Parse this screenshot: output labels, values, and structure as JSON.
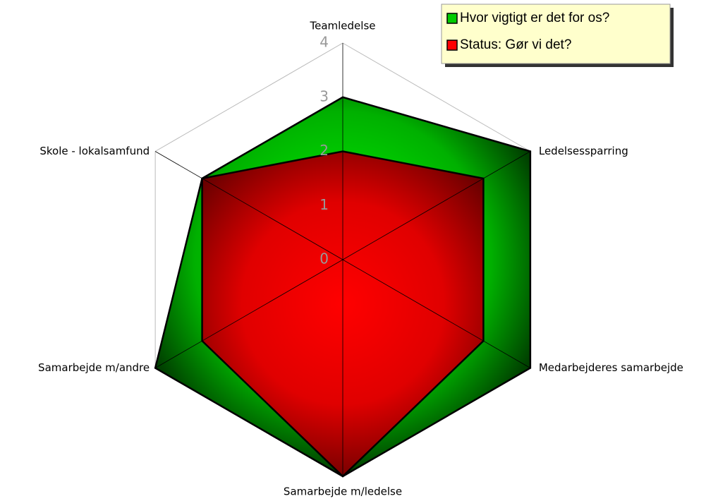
{
  "chart_data": {
    "type": "radar",
    "categories": [
      "Teamledelse",
      "Ledelsessparring",
      "Medarbejderes samarbejde",
      "Samarbejde m/ledelse",
      "Samarbejde m/andre",
      "Skole - lokalsamfund"
    ],
    "series": [
      {
        "name": "Hvor vigtigt er det for os?",
        "color": "#00cc00",
        "values": [
          3,
          4,
          4,
          4,
          4,
          3
        ]
      },
      {
        "name": "Status: Gør vi det?",
        "color": "#ff0000",
        "values": [
          2,
          3,
          3,
          4,
          3,
          3
        ]
      }
    ],
    "ylim": [
      0,
      4
    ],
    "yticks": [
      0,
      1,
      2,
      3,
      4
    ],
    "legend": "top-right"
  }
}
